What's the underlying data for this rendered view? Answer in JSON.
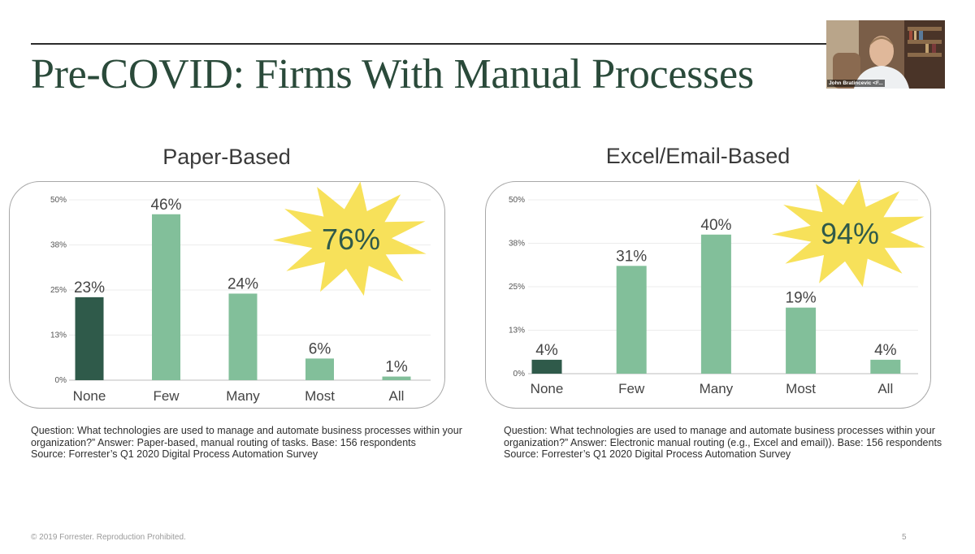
{
  "slide": {
    "title": "Pre-COVID: Firms With Manual Processes",
    "footer": "© 2019 Forrester. Reproduction Prohibited.",
    "page_number": "5"
  },
  "video_tile": {
    "participant_name": "John Bratincevic <F..."
  },
  "colors": {
    "title": "#2a4a3a",
    "bar_dark": "#2f5a4a",
    "bar_light": "#82bf9a",
    "starburst": "#f7e15a",
    "starburst_text": "#2f5a4a"
  },
  "chart_data": [
    {
      "type": "bar",
      "title": "Paper-Based",
      "categories": [
        "None",
        "Few",
        "Many",
        "Most",
        "All"
      ],
      "values": [
        23,
        46,
        24,
        6,
        1
      ],
      "data_labels": [
        "23%",
        "46%",
        "24%",
        "6%",
        "1%"
      ],
      "yticks": [
        "0%",
        "13%",
        "25%",
        "38%",
        "50%"
      ],
      "ylim": [
        0,
        50
      ],
      "grid": true,
      "highlight_index": 0,
      "callout": "76%",
      "caption": [
        "Question: What technologies are used to manage and automate business processes within your",
        "organization?” Answer: Paper-based, manual routing of tasks. Base: 156 respondents",
        "Source: Forrester’s Q1 2020 Digital Process Automation Survey"
      ]
    },
    {
      "type": "bar",
      "title": "Excel/Email-Based",
      "categories": [
        "None",
        "Few",
        "Many",
        "Most",
        "All"
      ],
      "values": [
        4,
        31,
        40,
        19,
        4
      ],
      "data_labels": [
        "4%",
        "31%",
        "40%",
        "19%",
        "4%"
      ],
      "yticks": [
        "0%",
        "13%",
        "25%",
        "38%",
        "50%"
      ],
      "ylim": [
        0,
        50
      ],
      "grid": true,
      "highlight_index": 0,
      "callout": "94%",
      "caption": [
        "Question: What technologies are used to manage and automate business processes within your",
        "organization?” Answer: Electronic manual routing (e.g., Excel and email)). Base: 156 respondents",
        "Source: Forrester’s Q1 2020 Digital Process Automation Survey"
      ]
    }
  ]
}
